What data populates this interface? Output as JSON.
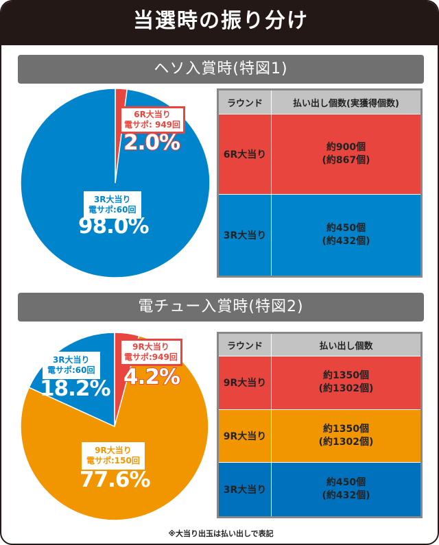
{
  "title": "当選時の振り分け",
  "colors": {
    "red": "#e8453e",
    "blue": "#0085cc",
    "orange": "#f29600",
    "table_blue": "#0071bc",
    "header_gray": "#c3c3c3"
  },
  "section1": {
    "heading": "ヘソ入賞時(特図1)",
    "pie": [
      {
        "name": "6R大当り",
        "sub": "電サポ: 949回",
        "value": 2.0,
        "label": "2.0%",
        "color": "#e8453e"
      },
      {
        "name": "3R大当り",
        "sub": "電サポ:60回",
        "value": 98.0,
        "label": "98.0%",
        "color": "#0085cc"
      }
    ],
    "table": {
      "headers": [
        "ラウンド",
        "払い出し個数(実獲得個数)"
      ],
      "rows": [
        {
          "round": "6R大当り",
          "payout": "約900個",
          "actual": "(約867個)",
          "color": "#e8453e"
        },
        {
          "round": "3R大当り",
          "payout": "約450個",
          "actual": "(約432個)",
          "color": "#0085cc"
        }
      ]
    }
  },
  "section2": {
    "heading": "電チュー入賞時(特図2)",
    "pie": [
      {
        "name": "9R大当り",
        "sub": "電サポ:949回",
        "value": 4.2,
        "label": "4.2%",
        "color": "#e8453e"
      },
      {
        "name": "9R大当り",
        "sub": "電サポ:150回",
        "value": 77.6,
        "label": "77.6%",
        "color": "#f29600"
      },
      {
        "name": "3R大当り",
        "sub": "電サポ:60回",
        "value": 18.2,
        "label": "18.2%",
        "color": "#0085cc"
      }
    ],
    "table": {
      "headers": [
        "ラウンド",
        "払い出し個数"
      ],
      "rows": [
        {
          "round": "9R大当り",
          "payout": "約1350個",
          "actual": "(約1302個)",
          "color": "#e8453e"
        },
        {
          "round": "9R大当り",
          "payout": "約1350個",
          "actual": "(約1302個)",
          "color": "#f29600"
        },
        {
          "round": "3R大当り",
          "payout": "約450個",
          "actual": "(約432個)",
          "color": "#0071bc"
        }
      ]
    }
  },
  "note": "※大当り出玉は払い出しで表記"
}
